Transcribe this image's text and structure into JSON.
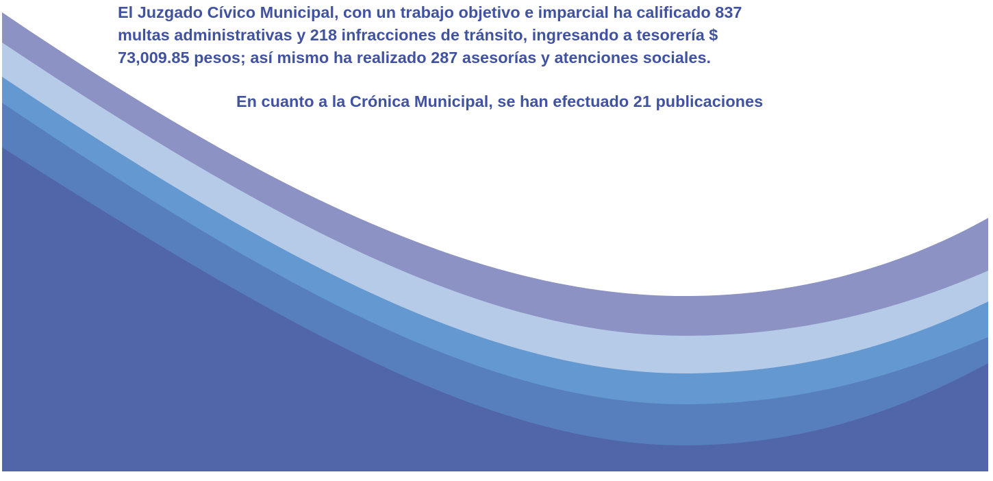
{
  "paragraphs": [
    {
      "lines": [
        "El Juzgado Cívico Municipal, con un trabajo objetivo e imparcial ha calificado 837",
        "multas administrativas y 218 infracciones de tránsito, ingresando a tesorería $",
        "73,009.85 pesos; así mismo ha realizado 287 asesorías y atenciones sociales."
      ]
    },
    {
      "lines": [
        "En cuanto a la Crónica Municipal, se han efectuado 21 publicaciones"
      ]
    }
  ]
}
